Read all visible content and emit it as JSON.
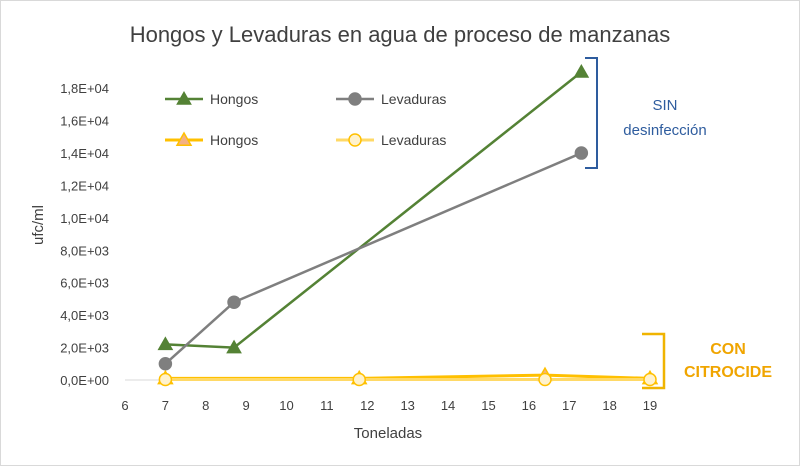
{
  "chart_data": {
    "type": "line",
    "title": "Hongos y Levaduras en agua de proceso de manzanas",
    "xlabel": "Toneladas",
    "ylabel": "ufc/ml",
    "xlim": [
      6,
      19
    ],
    "ylim": [
      0,
      19000
    ],
    "x_ticks": [
      "6",
      "7",
      "8",
      "9",
      "10",
      "11",
      "12",
      "13",
      "14",
      "15",
      "16",
      "17",
      "18",
      "19"
    ],
    "y_ticks": [
      "0,0E+00",
      "2,0E+03",
      "4,0E+03",
      "6,0E+03",
      "8,0E+03",
      "1,0E+04",
      "1,2E+04",
      "1,4E+04",
      "1,6E+04",
      "1,8E+04"
    ],
    "y_tick_values": [
      0,
      2000,
      4000,
      6000,
      8000,
      10000,
      12000,
      14000,
      16000,
      18000
    ],
    "grid": false,
    "legend_position": "top-left",
    "series": [
      {
        "name": "Hongos",
        "group": "sin",
        "color": "#548235",
        "marker": "triangle",
        "x": [
          7,
          8.7,
          17.3
        ],
        "values": [
          2200,
          2000,
          19000
        ]
      },
      {
        "name": "Levaduras",
        "group": "sin",
        "color": "#7f7f7f",
        "marker": "circle",
        "x": [
          7,
          8.7,
          17.3
        ],
        "values": [
          1000,
          4800,
          14000
        ]
      },
      {
        "name": "Hongos",
        "group": "con",
        "color": "#ffc000",
        "marker": "triangle",
        "x": [
          7,
          11.8,
          16.4,
          19
        ],
        "values": [
          100,
          100,
          300,
          100
        ]
      },
      {
        "name": "Levaduras",
        "group": "con",
        "color": "#ffd966",
        "marker": "circle",
        "x": [
          7,
          11.8,
          16.4,
          19
        ],
        "values": [
          30,
          30,
          30,
          30
        ]
      }
    ],
    "annotations": {
      "sin_line1": "SIN",
      "sin_line2": "desinfección",
      "sin_color": "#2e5c9e",
      "con_line1": "CON",
      "con_line2": "CITROCIDE",
      "con_color": "#f0a500"
    }
  }
}
